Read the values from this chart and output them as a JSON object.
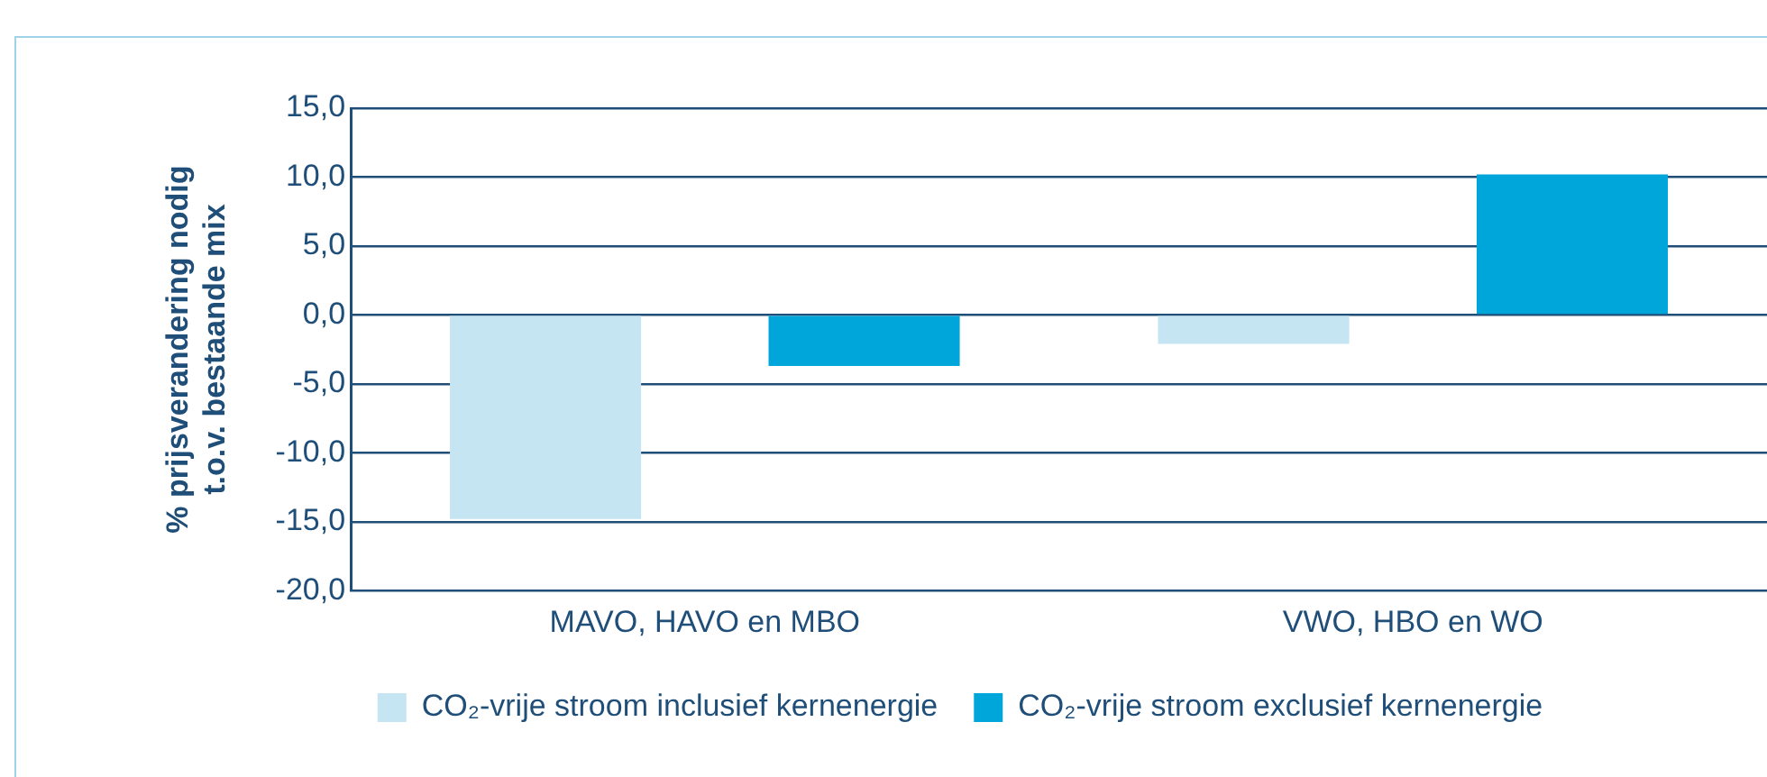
{
  "chart_data": {
    "type": "bar",
    "ylabel": "% prijsverandering nodig\nt.o.v. bestaande mix",
    "categories": [
      "MAVO, HAVO en MBO",
      "VWO, HBO en WO"
    ],
    "series": [
      {
        "name": "CO₂-vrije stroom inclusief kernenergie",
        "color": "#c5e5f2",
        "values": [
          -14.8,
          -2.1
        ]
      },
      {
        "name": "CO₂-vrije stroom exclusief kernenergie",
        "color": "#00a5d9",
        "values": [
          -3.7,
          10.2
        ]
      }
    ],
    "ylim": [
      -20,
      15
    ],
    "yticks": [
      {
        "value": -20,
        "label": "-20,0"
      },
      {
        "value": -15,
        "label": "-15,0"
      },
      {
        "value": -10,
        "label": "-10,0"
      },
      {
        "value": -5,
        "label": "-5,0"
      },
      {
        "value": 0,
        "label": "0,0"
      },
      {
        "value": 5,
        "label": "5,0"
      },
      {
        "value": 10,
        "label": "10,0"
      },
      {
        "value": 15,
        "label": "15,0"
      }
    ],
    "grid": "y",
    "legend": "bottom"
  }
}
